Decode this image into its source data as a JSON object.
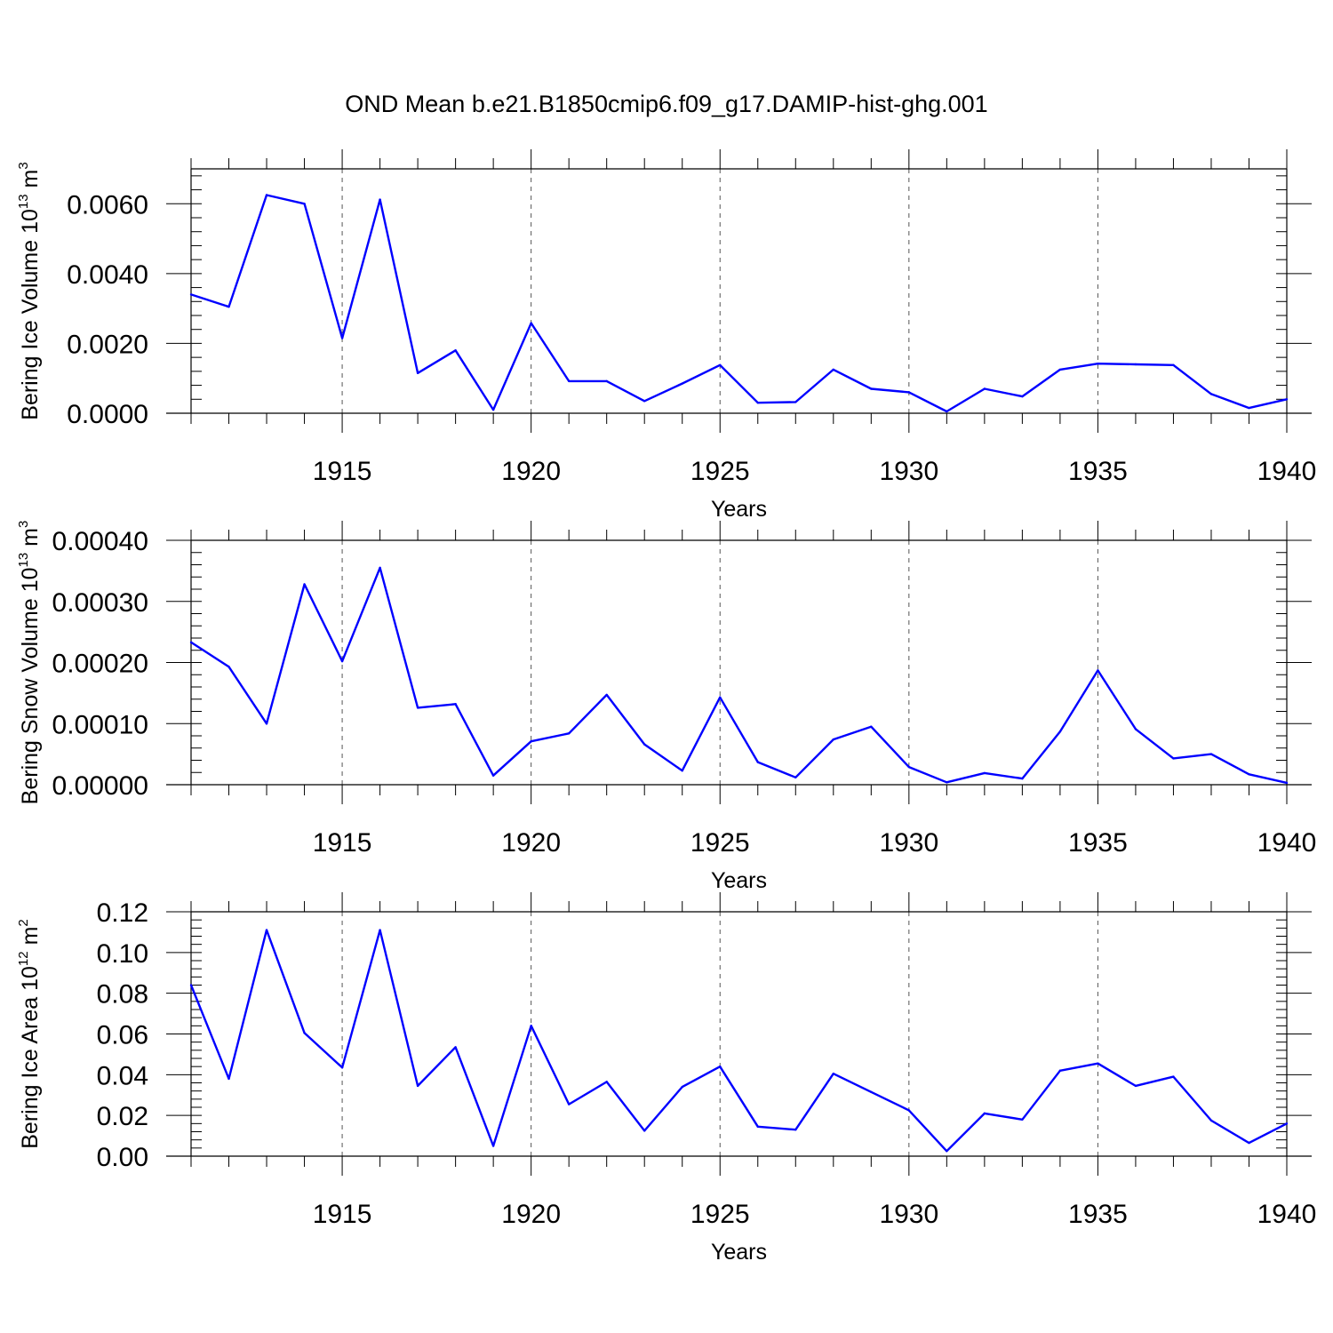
{
  "title": "OND Mean b.e21.B1850cmip6.f09_g17.DAMIP-hist-ghg.001",
  "line_color": "#0000ff",
  "chart_data": [
    {
      "type": "line",
      "ylabel": {
        "text": "Bering Ice Volume 10",
        "sup": "13",
        "unit": " m",
        "unit_sup": "3"
      },
      "xlabel": "Years",
      "xlim": [
        1911,
        1940
      ],
      "ylim": [
        0,
        0.007
      ],
      "xticks": [
        1915,
        1920,
        1925,
        1930,
        1935,
        1940
      ],
      "xtick_labels": [
        "1915",
        "1920",
        "1925",
        "1930",
        "1935",
        "1940"
      ],
      "yticks": [
        0,
        0.002,
        0.004,
        0.006
      ],
      "ytick_labels": [
        "0.0000",
        "0.0020",
        "0.0040",
        "0.0060"
      ],
      "x": [
        1911,
        1912,
        1913,
        1914,
        1915,
        1916,
        1917,
        1918,
        1919,
        1920,
        1921,
        1922,
        1923,
        1924,
        1925,
        1926,
        1927,
        1928,
        1929,
        1930,
        1931,
        1932,
        1933,
        1934,
        1935,
        1936,
        1937,
        1938,
        1939,
        1940
      ],
      "values": [
        0.0034,
        0.00305,
        0.00625,
        0.006,
        0.00215,
        0.00612,
        0.00115,
        0.0018,
        0.0001,
        0.00258,
        0.00092,
        0.00092,
        0.00035,
        0.00085,
        0.00138,
        0.0003,
        0.00032,
        0.00125,
        0.0007,
        0.0006,
        5e-05,
        0.0007,
        0.00048,
        0.00125,
        0.00142,
        0.0014,
        0.00138,
        0.00055,
        0.00015,
        0.0004
      ]
    },
    {
      "type": "line",
      "ylabel": {
        "text": "Bering Snow Volume 10",
        "sup": "13",
        "unit": " m",
        "unit_sup": "3"
      },
      "xlabel": "Years",
      "xlim": [
        1911,
        1940
      ],
      "ylim": [
        0,
        0.0004
      ],
      "xticks": [
        1915,
        1920,
        1925,
        1930,
        1935,
        1940
      ],
      "xtick_labels": [
        "1915",
        "1920",
        "1925",
        "1930",
        "1935",
        "1940"
      ],
      "yticks": [
        0,
        0.0001,
        0.0002,
        0.0003,
        0.0004
      ],
      "ytick_labels": [
        "0.00000",
        "0.00010",
        "0.00020",
        "0.00030",
        "0.00040"
      ],
      "x": [
        1911,
        1912,
        1913,
        1914,
        1915,
        1916,
        1917,
        1918,
        1919,
        1920,
        1921,
        1922,
        1923,
        1924,
        1925,
        1926,
        1927,
        1928,
        1929,
        1930,
        1931,
        1932,
        1933,
        1934,
        1935,
        1936,
        1937,
        1938,
        1939,
        1940
      ],
      "values": [
        0.000233,
        0.000193,
        0.0001,
        0.000328,
        0.000202,
        0.000355,
        0.000126,
        0.000132,
        1.5e-05,
        7.1e-05,
        8.4e-05,
        0.000147,
        6.6e-05,
        2.3e-05,
        0.000143,
        3.7e-05,
        1.2e-05,
        7.4e-05,
        9.5e-05,
        2.9e-05,
        4e-06,
        1.9e-05,
        1e-05,
        8.7e-05,
        0.000187,
        9.1e-05,
        4.3e-05,
        5e-05,
        1.7e-05,
        3e-06
      ]
    },
    {
      "type": "line",
      "ylabel": {
        "text": "Bering Ice Area 10",
        "sup": "12",
        "unit": " m",
        "unit_sup": "2"
      },
      "xlabel": "Years",
      "xlim": [
        1911,
        1940
      ],
      "ylim": [
        0,
        0.12
      ],
      "xticks": [
        1915,
        1920,
        1925,
        1930,
        1935,
        1940
      ],
      "xtick_labels": [
        "1915",
        "1920",
        "1925",
        "1930",
        "1935",
        "1940"
      ],
      "yticks": [
        0,
        0.02,
        0.04,
        0.06,
        0.08,
        0.1,
        0.12
      ],
      "ytick_labels": [
        "0.00",
        "0.02",
        "0.04",
        "0.06",
        "0.08",
        "0.10",
        "0.12"
      ],
      "x": [
        1911,
        1912,
        1913,
        1914,
        1915,
        1916,
        1917,
        1918,
        1919,
        1920,
        1921,
        1922,
        1923,
        1924,
        1925,
        1926,
        1927,
        1928,
        1929,
        1930,
        1931,
        1932,
        1933,
        1934,
        1935,
        1936,
        1937,
        1938,
        1939,
        1940
      ],
      "values": [
        0.084,
        0.038,
        0.111,
        0.0605,
        0.0435,
        0.111,
        0.0345,
        0.0535,
        0.005,
        0.064,
        0.0255,
        0.0365,
        0.0125,
        0.034,
        0.044,
        0.0145,
        0.013,
        0.0405,
        0.0315,
        0.0225,
        0.0025,
        0.021,
        0.018,
        0.042,
        0.0455,
        0.0345,
        0.039,
        0.0175,
        0.0065,
        0.016
      ]
    }
  ]
}
